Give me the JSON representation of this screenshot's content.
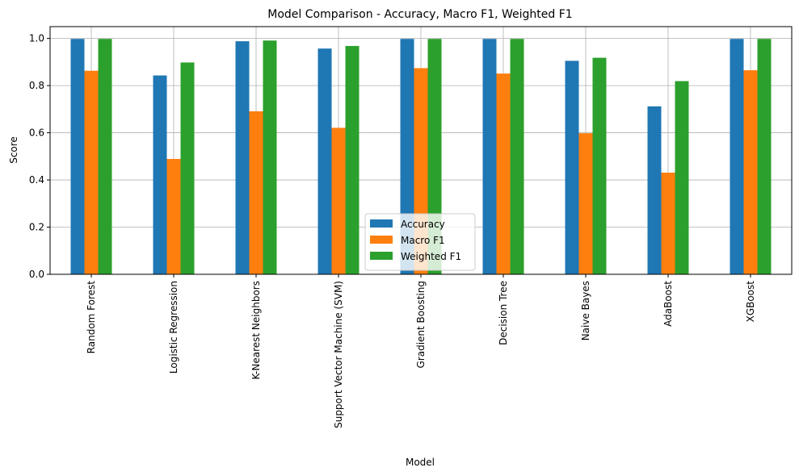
{
  "chart_data": {
    "type": "bar",
    "title": "Model Comparison - Accuracy, Macro F1, Weighted F1",
    "xlabel": "Model",
    "ylabel": "Score",
    "ylim": [
      0,
      1.05
    ],
    "yticks": [
      "0.0",
      "0.2",
      "0.4",
      "0.6",
      "0.8",
      "1.0"
    ],
    "grid": true,
    "legend_position": "bottom-center",
    "categories": [
      "Random Forest",
      "Logistic Regression",
      "K-Nearest Neighbors",
      "Support Vector Machine (SVM)",
      "Gradient Boosting",
      "Decision Tree",
      "Naive Bayes",
      "AdaBoost",
      "XGBoost"
    ],
    "series": [
      {
        "name": "Accuracy",
        "color": "#1f77b4",
        "values": [
          0.998,
          0.843,
          0.988,
          0.957,
          0.998,
          0.998,
          0.905,
          0.712,
          0.998
        ]
      },
      {
        "name": "Macro F1",
        "color": "#ff7f0e",
        "values": [
          0.863,
          0.489,
          0.691,
          0.621,
          0.874,
          0.851,
          0.598,
          0.431,
          0.865
        ]
      },
      {
        "name": "Weighted F1",
        "color": "#2ca02c",
        "values": [
          0.998,
          0.898,
          0.991,
          0.968,
          0.998,
          0.998,
          0.918,
          0.819,
          0.998
        ]
      }
    ]
  }
}
